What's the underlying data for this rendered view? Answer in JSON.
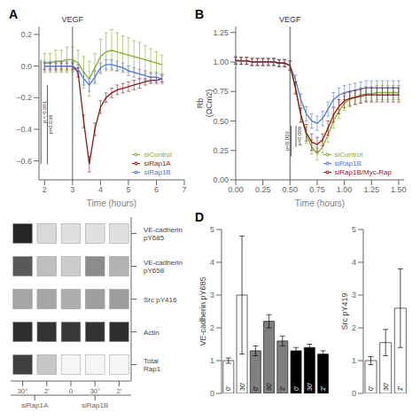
{
  "chart_data": [
    {
      "type": "line",
      "title": "A",
      "xlabel": "Time (hours)",
      "xlim": [
        1.8,
        7.0
      ],
      "xticks": [
        2,
        3,
        4,
        5,
        6,
        7
      ],
      "ylim": [
        -0.72,
        0.25
      ],
      "yticks": [
        {
          "value": -0.6,
          "label": "−0.6"
        },
        {
          "value": -0.4,
          "label": "−0.4"
        },
        {
          "value": -0.2,
          "label": "−0.2"
        },
        {
          "value": 0.0,
          "label": "0.0"
        },
        0.2
      ],
      "grid": false,
      "legend": "lower right",
      "annotations": [
        {
          "text": "VEGF",
          "x": 3.0
        },
        {
          "text": "p = 0.001",
          "x": 1.87,
          "y": [
            -0.62,
            0.04
          ]
        },
        {
          "text": "p=0.039",
          "x": 2.1,
          "y": [
            -0.62,
            -0.12
          ]
        }
      ],
      "series": [
        {
          "name": "siControl",
          "color": "#88aa33",
          "x": [
            2.0,
            2.2,
            2.4,
            2.6,
            2.8,
            3.0,
            3.2,
            3.4,
            3.6,
            3.8,
            4.0,
            4.2,
            4.4,
            4.6,
            4.8,
            5.0,
            5.2,
            5.4,
            5.6,
            5.8,
            6.0,
            6.2
          ],
          "values": [
            0.02,
            0.02,
            0.03,
            0.03,
            0.04,
            0.04,
            0.02,
            -0.04,
            -0.08,
            -0.01,
            0.06,
            0.09,
            0.1,
            0.09,
            0.08,
            0.07,
            0.06,
            0.05,
            0.04,
            0.03,
            0.02,
            0.01
          ],
          "yerr": [
            0.06,
            0.06,
            0.07,
            0.07,
            0.08,
            0.08,
            0.08,
            0.1,
            0.11,
            0.09,
            0.11,
            0.12,
            0.13,
            0.12,
            0.11,
            0.11,
            0.1,
            0.1,
            0.09,
            0.08,
            0.07,
            0.06
          ]
        },
        {
          "name": "siRap1A",
          "color": "#8b1a1a",
          "x": [
            2.0,
            2.2,
            2.4,
            2.6,
            2.8,
            3.0,
            3.2,
            3.4,
            3.6,
            3.8,
            4.0,
            4.2,
            4.4,
            4.6,
            4.8,
            5.0,
            5.2,
            5.4,
            5.6,
            5.8,
            6.0,
            6.2
          ],
          "values": [
            0.0,
            0.0,
            0.0,
            0.0,
            0.0,
            0.0,
            -0.04,
            -0.35,
            -0.62,
            -0.4,
            -0.26,
            -0.2,
            -0.17,
            -0.15,
            -0.14,
            -0.13,
            -0.12,
            -0.11,
            -0.1,
            -0.09,
            -0.09,
            -0.08
          ],
          "yerr": [
            0.02,
            0.02,
            0.02,
            0.02,
            0.02,
            0.02,
            0.03,
            0.04,
            0.05,
            0.04,
            0.04,
            0.03,
            0.03,
            0.03,
            0.03,
            0.03,
            0.03,
            0.03,
            0.02,
            0.02,
            0.02,
            0.02
          ]
        },
        {
          "name": "siRap1B",
          "color": "#5577cc",
          "x": [
            2.0,
            2.2,
            2.4,
            2.6,
            2.8,
            3.0,
            3.2,
            3.4,
            3.6,
            3.8,
            4.0,
            4.2,
            4.4,
            4.6,
            4.8,
            5.0,
            5.2,
            5.4,
            5.6,
            5.8,
            6.0,
            6.2
          ],
          "values": [
            0.0,
            0.0,
            0.0,
            0.0,
            0.0,
            0.0,
            -0.02,
            -0.08,
            -0.12,
            -0.07,
            -0.01,
            0.01,
            0.01,
            0.0,
            -0.01,
            -0.03,
            -0.04,
            -0.05,
            -0.06,
            -0.07,
            -0.07,
            -0.08
          ],
          "yerr": [
            0.03,
            0.03,
            0.03,
            0.03,
            0.03,
            0.03,
            0.03,
            0.04,
            0.04,
            0.04,
            0.03,
            0.03,
            0.03,
            0.03,
            0.03,
            0.03,
            0.03,
            0.03,
            0.03,
            0.03,
            0.03,
            0.03
          ]
        }
      ]
    },
    {
      "type": "line",
      "title": "B",
      "xlabel": "Time (hours)",
      "ylabel": "Rb\n(ΩCm2)",
      "xlim": [
        0.0,
        1.55
      ],
      "xticks": [
        {
          "value": 0.0,
          "label": "0.00"
        },
        {
          "value": 0.25,
          "label": "0.25"
        },
        {
          "value": 0.5,
          "label": "0.50"
        },
        {
          "value": 0.75,
          "label": "0.75"
        },
        {
          "value": 1.0,
          "label": "1.00"
        },
        {
          "value": 1.25,
          "label": "1.25"
        },
        {
          "value": 1.5,
          "label": "1.50"
        }
      ],
      "ylim": [
        0.0,
        1.3
      ],
      "yticks": [
        {
          "value": 0.0,
          "label": "0.00"
        },
        {
          "value": 0.25,
          "label": "0.25"
        },
        {
          "value": 0.5,
          "label": "0.50"
        },
        {
          "value": 0.75,
          "label": "0.75"
        },
        {
          "value": 1.0,
          "label": "1.00"
        },
        {
          "value": 1.25,
          "label": "1.25"
        }
      ],
      "grid": false,
      "legend": "lower right",
      "annotations": [
        {
          "text": "VEGF",
          "x": 0.5
        },
        {
          "text": "p=0.003",
          "x": 0.51,
          "y": [
            0.2,
            0.46
          ]
        },
        {
          "text": "p=0.009",
          "x": 0.555,
          "y": [
            0.28,
            0.46
          ]
        }
      ],
      "series": [
        {
          "name": "siControl",
          "color": "#88aa33",
          "x": [
            0.0,
            0.05,
            0.1,
            0.15,
            0.2,
            0.25,
            0.3,
            0.35,
            0.4,
            0.45,
            0.5,
            0.55,
            0.6,
            0.65,
            0.7,
            0.75,
            0.8,
            0.85,
            0.9,
            0.95,
            1.0,
            1.05,
            1.1,
            1.15,
            1.2,
            1.25,
            1.3,
            1.35,
            1.4,
            1.45,
            1.5
          ],
          "values": [
            1.02,
            1.01,
            1.01,
            1.0,
            1.0,
            1.0,
            1.0,
            1.0,
            0.99,
            0.99,
            0.97,
            0.78,
            0.55,
            0.38,
            0.28,
            0.22,
            0.28,
            0.38,
            0.5,
            0.58,
            0.65,
            0.68,
            0.7,
            0.72,
            0.73,
            0.73,
            0.74,
            0.74,
            0.74,
            0.74,
            0.74
          ],
          "yerr": [
            0.03,
            0.03,
            0.03,
            0.03,
            0.03,
            0.03,
            0.03,
            0.03,
            0.03,
            0.03,
            0.04,
            0.05,
            0.06,
            0.07,
            0.06,
            0.05,
            0.05,
            0.06,
            0.06,
            0.06,
            0.06,
            0.06,
            0.06,
            0.06,
            0.06,
            0.06,
            0.06,
            0.06,
            0.06,
            0.06,
            0.06
          ]
        },
        {
          "name": "siRap1B",
          "color": "#5577cc",
          "x": [
            0.0,
            0.05,
            0.1,
            0.15,
            0.2,
            0.25,
            0.3,
            0.35,
            0.4,
            0.45,
            0.5,
            0.55,
            0.6,
            0.65,
            0.7,
            0.75,
            0.8,
            0.85,
            0.9,
            0.95,
            1.0,
            1.05,
            1.1,
            1.15,
            1.2,
            1.25,
            1.3,
            1.35,
            1.4,
            1.45,
            1.5
          ],
          "values": [
            1.01,
            1.01,
            1.01,
            1.0,
            1.0,
            1.0,
            1.0,
            1.0,
            0.99,
            0.99,
            0.97,
            0.85,
            0.68,
            0.56,
            0.5,
            0.48,
            0.52,
            0.6,
            0.68,
            0.72,
            0.74,
            0.75,
            0.76,
            0.77,
            0.78,
            0.78,
            0.78,
            0.78,
            0.78,
            0.78,
            0.78
          ],
          "yerr": [
            0.03,
            0.03,
            0.03,
            0.03,
            0.03,
            0.03,
            0.03,
            0.03,
            0.03,
            0.03,
            0.03,
            0.04,
            0.05,
            0.06,
            0.06,
            0.06,
            0.06,
            0.06,
            0.06,
            0.06,
            0.06,
            0.06,
            0.06,
            0.06,
            0.06,
            0.06,
            0.06,
            0.06,
            0.06,
            0.06,
            0.06
          ]
        },
        {
          "name": "siRap1B/Myc-Rap",
          "color": "#8b1a1a",
          "x": [
            0.0,
            0.05,
            0.1,
            0.15,
            0.2,
            0.25,
            0.3,
            0.35,
            0.4,
            0.45,
            0.5,
            0.55,
            0.6,
            0.65,
            0.7,
            0.75,
            0.8,
            0.85,
            0.9,
            0.95,
            1.0,
            1.05,
            1.1,
            1.15,
            1.2,
            1.25,
            1.3,
            1.35,
            1.4,
            1.45,
            1.5
          ],
          "values": [
            1.01,
            1.01,
            1.01,
            1.0,
            1.0,
            1.0,
            1.0,
            1.0,
            0.99,
            0.99,
            0.97,
            0.78,
            0.55,
            0.4,
            0.32,
            0.3,
            0.34,
            0.44,
            0.55,
            0.62,
            0.67,
            0.69,
            0.7,
            0.71,
            0.72,
            0.72,
            0.72,
            0.72,
            0.72,
            0.72,
            0.72
          ],
          "yerr": [
            0.03,
            0.03,
            0.03,
            0.03,
            0.03,
            0.03,
            0.03,
            0.03,
            0.03,
            0.03,
            0.04,
            0.05,
            0.06,
            0.07,
            0.07,
            0.06,
            0.05,
            0.06,
            0.06,
            0.06,
            0.06,
            0.06,
            0.06,
            0.06,
            0.06,
            0.06,
            0.06,
            0.06,
            0.06,
            0.06,
            0.06
          ]
        }
      ]
    },
    {
      "type": "heatmap",
      "categories": [
        "30°",
        "2'",
        "0",
        "30°",
        "2'"
      ],
      "rows": [
        "VE-cadherin\npY685",
        "VE-cadherin\npY658",
        "Src pY416",
        "Actin",
        "Total\nRap1"
      ],
      "cells": [
        [
          0.85,
          0.15,
          0.12,
          0.12,
          0.12
        ],
        [
          0.65,
          0.25,
          0.2,
          0.45,
          0.3
        ],
        [
          0.35,
          0.35,
          0.32,
          0.38,
          0.38
        ],
        [
          0.82,
          0.8,
          0.78,
          0.8,
          0.82
        ],
        [
          0.75,
          0.22,
          0.04,
          0.04,
          0.04
        ]
      ],
      "groups": [
        {
          "name": "siRap1A",
          "columns": [
            0,
            1
          ]
        },
        {
          "name": "siRap1B",
          "columns": [
            2,
            3,
            4
          ]
        }
      ]
    },
    {
      "type": "bar",
      "title": "D",
      "ylabel": "VE-cadherin pY685",
      "ylim": [
        0,
        5
      ],
      "yticks": [
        0,
        1,
        2,
        3,
        4,
        5
      ],
      "grid": false,
      "groups": [
        {
          "name": "siControl",
          "color": "white",
          "bars": [
            {
              "label": "0'",
              "value": 1.0,
              "yerr": 0.08
            },
            {
              "label": "30'",
              "value": 3.0,
              "yerr": 1.8
            }
          ]
        },
        {
          "name": "siRap1A",
          "color": "gray",
          "bars": [
            {
              "label": "0'",
              "value": 1.3,
              "yerr": 0.15
            },
            {
              "label": "30'",
              "value": 2.2,
              "yerr": 0.2
            },
            {
              "label": "2'",
              "value": 1.6,
              "yerr": 0.15
            }
          ]
        },
        {
          "name": "siRap1B",
          "color": "black",
          "bars": [
            {
              "label": "0'",
              "value": 1.3,
              "yerr": 0.1
            },
            {
              "label": "30'",
              "value": 1.4,
              "yerr": 0.1
            },
            {
              "label": "2'",
              "value": 1.2,
              "yerr": 0.1
            }
          ]
        }
      ]
    },
    {
      "type": "bar",
      "ylabel": "Src pY419",
      "ylim": [
        0,
        5
      ],
      "yticks": [
        0,
        1,
        2,
        3,
        4,
        5
      ],
      "grid": false,
      "groups": [
        {
          "name": "siControl",
          "color": "white",
          "bars": [
            {
              "label": "0'",
              "value": 1.0,
              "yerr": 0.12
            },
            {
              "label": "30'",
              "value": 1.55,
              "yerr": 0.4
            },
            {
              "label": "2'",
              "value": 2.6,
              "yerr": 1.2
            }
          ]
        }
      ]
    }
  ]
}
